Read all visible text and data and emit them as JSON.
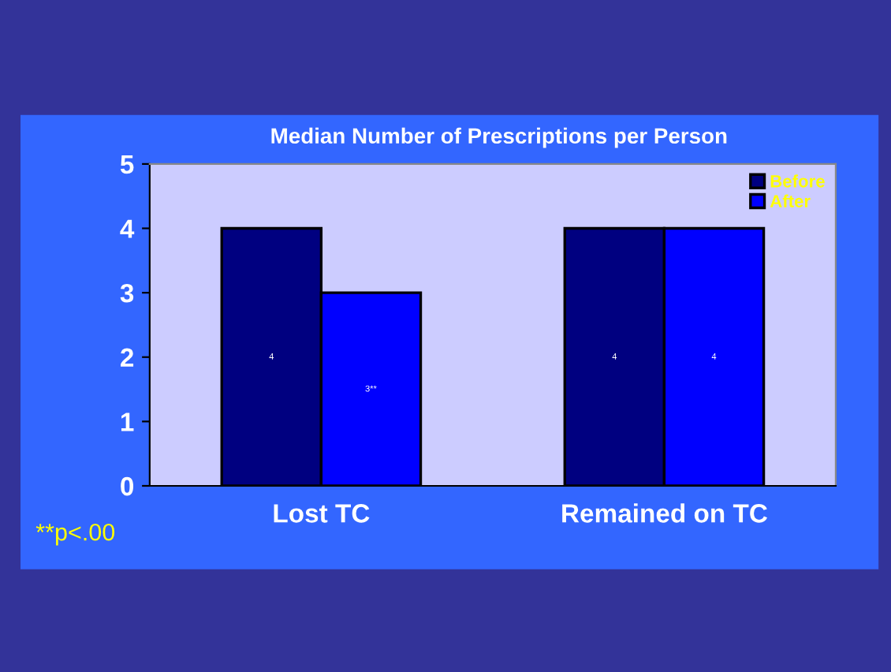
{
  "chart_data": {
    "type": "bar",
    "title": "Median Number of Prescriptions per Person",
    "categories": [
      "Lost TC",
      "Remained on TC"
    ],
    "series": [
      {
        "name": "Before",
        "color": "#000080",
        "values": [
          4,
          4
        ],
        "value_labels": [
          "4",
          "4"
        ]
      },
      {
        "name": "After",
        "color": "#0000ff",
        "values": [
          3,
          4
        ],
        "value_labels": [
          "3**",
          "4"
        ]
      }
    ],
    "ylim": [
      0,
      5
    ],
    "yticks": [
      0,
      1,
      2,
      3,
      4,
      5
    ],
    "grid": false,
    "legend": "top right",
    "annotations": [
      "**p<.00"
    ]
  }
}
